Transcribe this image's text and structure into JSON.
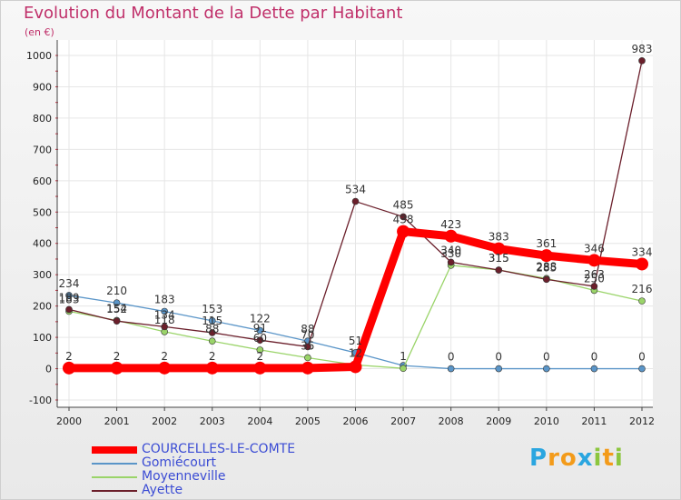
{
  "title": "Evolution du Montant de la Dette par Habitant",
  "unit": "(en €)",
  "logo": {
    "text": "Proxiti",
    "letters": [
      {
        "ch": "P",
        "color": "#2aa6e0"
      },
      {
        "ch": "r",
        "color": "#f39b1a"
      },
      {
        "ch": "o",
        "color": "#f39b1a"
      },
      {
        "ch": "x",
        "color": "#2aa6e0"
      },
      {
        "ch": "i",
        "color": "#8cc63e"
      },
      {
        "ch": "t",
        "color": "#f39b1a"
      },
      {
        "ch": "i",
        "color": "#8cc63e"
      }
    ]
  },
  "chart_data": {
    "type": "line",
    "title": "Evolution du Montant de la Dette par Habitant",
    "ylabel": "(en €)",
    "xlabel": "",
    "ylim": [
      -100,
      1000
    ],
    "yticks": [
      -100,
      0,
      100,
      200,
      300,
      400,
      500,
      600,
      700,
      800,
      900,
      1000
    ],
    "categories": [
      "2000",
      "2001",
      "2002",
      "2003",
      "2004",
      "2005",
      "2006",
      "2007",
      "2008",
      "2009",
      "2010",
      "2011",
      "2012"
    ],
    "grid": true,
    "legend_position": "bottom-left",
    "series": [
      {
        "name": "COURCELLES-LE-COMTE",
        "color": "#ff0000",
        "width": 9,
        "marker": 7,
        "values": [
          2,
          2,
          2,
          2,
          2,
          2,
          6,
          438,
          423,
          383,
          361,
          346,
          334
        ],
        "labels": [
          "2",
          "2",
          "2",
          "2",
          "2",
          "",
          "",
          "438",
          "423",
          "383",
          "361",
          "346",
          "334"
        ]
      },
      {
        "name": "Gomiécourt",
        "color": "#5a95c8",
        "width": 1.3,
        "marker": 3.5,
        "values": [
          234,
          210,
          183,
          153,
          122,
          88,
          51,
          10,
          0,
          0,
          0,
          0,
          0
        ],
        "labels": [
          "234",
          "210",
          "183",
          "153",
          "122",
          "88",
          "51",
          "",
          "0",
          "0",
          "0",
          "0",
          "0"
        ]
      },
      {
        "name": "Moyenneville",
        "color": "#9ad469",
        "width": 1.3,
        "marker": 3.5,
        "values": [
          183,
          154,
          118,
          88,
          60,
          35,
          12,
          1,
          330,
          315,
          288,
          250,
          216
        ],
        "labels": [
          "183",
          "154",
          "118",
          "88",
          "60",
          "35",
          "12",
          "1",
          "330",
          "315",
          "288",
          "250",
          "216"
        ]
      },
      {
        "name": "Ayette",
        "color": "#6b1f2b",
        "width": 1.3,
        "marker": 3.5,
        "values": [
          189,
          152,
          134,
          115,
          91,
          70,
          534,
          485,
          340,
          315,
          285,
          263,
          983
        ],
        "labels": [
          "189",
          "152",
          "134",
          "115",
          "91",
          "70",
          "534",
          "485",
          "340",
          "315",
          "285",
          "263",
          "983"
        ]
      }
    ]
  }
}
